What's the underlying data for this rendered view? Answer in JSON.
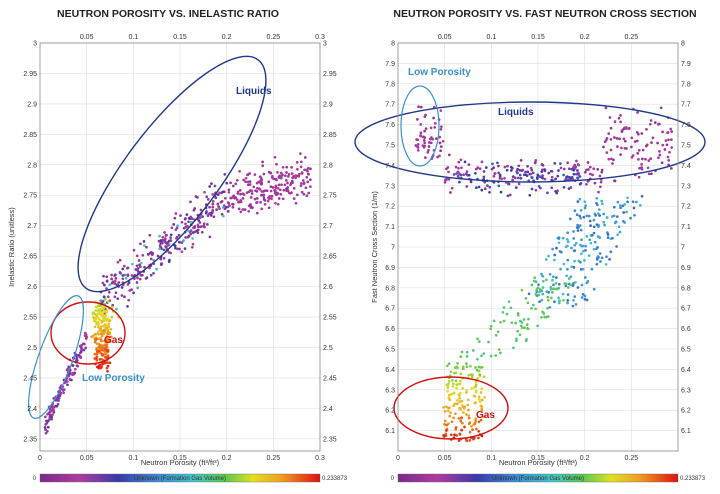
{
  "chart_data": [
    {
      "type": "scatter",
      "title": "NEUTRON POROSITY VS. INELASTIC RATIO",
      "xlabel": "Neutron Porosity (ft³/ft³)",
      "ylabel": "Inelastic Ratio (unitless)",
      "xlim": [
        0,
        0.3
      ],
      "ylim": [
        2.33,
        3.0
      ],
      "xticks": [
        "0.05",
        "0.1",
        "0.15",
        "0.2",
        "0.25",
        "0.3"
      ],
      "yticks": [
        "2.35",
        "2.4",
        "2.45",
        "2.5",
        "2.55",
        "2.6",
        "2.65",
        "2.7",
        "2.75",
        "2.8",
        "2.85",
        "2.9",
        "2.95",
        "3"
      ],
      "grid": true,
      "colorbar": {
        "min": "0",
        "max": "0.233873",
        "label": "Unknown (Formation Gas Volume)"
      },
      "annotations": [
        {
          "text": "Liquids",
          "color": "#1f3a8a"
        },
        {
          "text": "Gas",
          "color": "#d01010"
        },
        {
          "text": "Low Porosity",
          "color": "#3a8fd0"
        }
      ],
      "clusters": [
        {
          "name": "",
          "x_range": [
            0.07,
            0.29
          ],
          "y_range": [
            2.6,
            2.96
          ],
          "color_value": "low"
        },
        {
          "name": "",
          "x_range": [
            0.05,
            0.08
          ],
          "y_range": [
            2.45,
            2.58
          ],
          "color_value": "high"
        },
        {
          "name": "",
          "x_range": [
            0.005,
            0.04
          ],
          "y_range": [
            2.36,
            2.52
          ],
          "color_value": "low"
        }
      ]
    },
    {
      "type": "scatter",
      "title": "NEUTRON POROSITY VS. FAST NEUTRON CROSS SECTION",
      "xlabel": "Neutron Porosity (ft³/ft³)",
      "ylabel": "Fast Neutron Cross Section (1/m)",
      "xlim": [
        0,
        0.3
      ],
      "ylim": [
        6.0,
        8.0
      ],
      "xticks": [
        "0.05",
        "0.1",
        "0.15",
        "0.2",
        "0.25"
      ],
      "yticks": [
        "6.1",
        "6.2",
        "6.3",
        "6.4",
        "6.5",
        "6.6",
        "6.7",
        "6.8",
        "6.9",
        "7",
        "7.1",
        "7.2",
        "7.3",
        "7.4",
        "7.5",
        "7.6",
        "7.7",
        "7.8",
        "7.9",
        "8"
      ],
      "grid": true,
      "colorbar": {
        "min": "0",
        "max": "0.233873",
        "label": "Unknown (Formation Gas Volume)"
      },
      "annotations": [
        {
          "text": "Liquids",
          "color": "#1f3a8a"
        },
        {
          "text": "Gas",
          "color": "#d01010"
        },
        {
          "text": "Low Porosity",
          "color": "#3a8fd0"
        }
      ],
      "clusters": [
        {
          "name": "",
          "x_range": [
            0.01,
            0.3
          ],
          "y_range": [
            7.2,
            7.9
          ],
          "color_value": "low"
        },
        {
          "name": "",
          "x_range": [
            0.04,
            0.2
          ],
          "y_range": [
            6.5,
            7.3
          ],
          "color_value": "mid"
        },
        {
          "name": "",
          "x_range": [
            0.04,
            0.1
          ],
          "y_range": [
            6.05,
            6.45
          ],
          "color_value": "high"
        }
      ]
    }
  ]
}
